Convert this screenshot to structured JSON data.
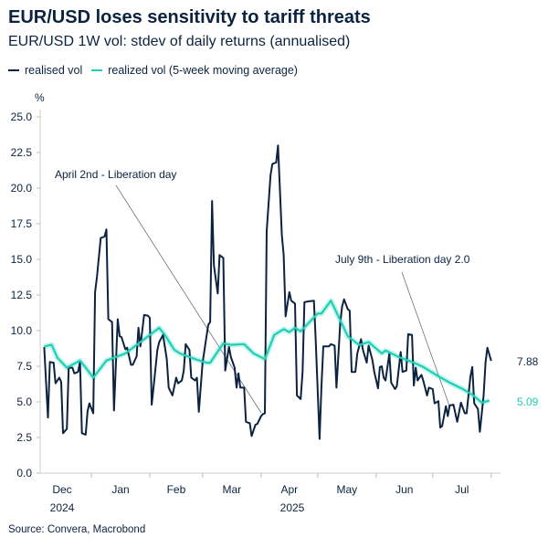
{
  "title": "EUR/USD loses sensitivity to tariff threats",
  "subtitle": "EUR/USD 1W vol: stdev of daily returns (annualised)",
  "source": "Source: Convera, Macrobond",
  "colors": {
    "realised": "#0b2340",
    "ma": "#1fcfb6"
  },
  "chart_data": {
    "type": "line",
    "ylabel": "%",
    "ylim": [
      0,
      25
    ],
    "yticks": [
      "0.0",
      "2.5",
      "5.0",
      "7.5",
      "10.0",
      "12.5",
      "15.0",
      "17.5",
      "20.0",
      "22.5",
      "25.0"
    ],
    "xticks": [
      "Dec",
      "Jan",
      "Feb",
      "Mar",
      "Apr",
      "May",
      "Jun",
      "Jul"
    ],
    "year_labels": [
      "2024",
      "2025"
    ],
    "grid": false,
    "legend": "top-left",
    "annotations": [
      {
        "text": "April 2nd - Liberation day",
        "date": "2025-04-02"
      },
      {
        "text": "July 9th - Liberation day 2.0",
        "date": "2025-07-09"
      }
    ],
    "end_labels": [
      "7.88",
      "5.09"
    ],
    "series": [
      {
        "name": "realised vol",
        "points": [
          [
            "2024-12-07",
            8.85
          ],
          [
            "2024-12-09",
            3.9
          ],
          [
            "2024-12-10",
            7.8
          ],
          [
            "2024-12-12",
            7.75
          ],
          [
            "2024-12-13",
            6.3
          ],
          [
            "2024-12-15",
            6.7
          ],
          [
            "2024-12-16",
            6.4
          ],
          [
            "2024-12-17",
            2.8
          ],
          [
            "2024-12-19",
            3.1
          ],
          [
            "2024-12-20",
            7.4
          ],
          [
            "2024-12-22",
            7.4
          ],
          [
            "2024-12-23",
            7.0
          ],
          [
            "2024-12-25",
            7.1
          ],
          [
            "2024-12-26",
            7.8
          ],
          [
            "2024-12-27",
            2.8
          ],
          [
            "2024-12-29",
            2.7
          ],
          [
            "2024-12-30",
            4.35
          ],
          [
            "2024-12-31",
            4.9
          ],
          [
            "2025-01-02",
            4.2
          ],
          [
            "2025-01-03",
            12.7
          ],
          [
            "2025-01-04",
            13.8
          ],
          [
            "2025-01-06",
            16.5
          ],
          [
            "2025-01-08",
            16.6
          ],
          [
            "2025-01-09",
            17.1
          ],
          [
            "2025-01-10",
            10.8
          ],
          [
            "2025-01-12",
            10.6
          ],
          [
            "2025-01-13",
            4.4
          ],
          [
            "2025-01-15",
            10.8
          ],
          [
            "2025-01-16",
            9.6
          ],
          [
            "2025-01-17",
            9.55
          ],
          [
            "2025-01-19",
            8.7
          ],
          [
            "2025-01-20",
            8.8
          ],
          [
            "2025-01-22",
            7.6
          ],
          [
            "2025-01-23",
            7.6
          ],
          [
            "2025-01-25",
            8.2
          ],
          [
            "2025-01-26",
            10.2
          ],
          [
            "2025-01-27",
            8.9
          ],
          [
            "2025-01-29",
            11.1
          ],
          [
            "2025-01-31",
            11.05
          ],
          [
            "2025-02-01",
            10.9
          ],
          [
            "2025-02-02",
            4.8
          ],
          [
            "2025-02-03",
            6.0
          ],
          [
            "2025-02-05",
            8.65
          ],
          [
            "2025-02-06",
            9.2
          ],
          [
            "2025-02-08",
            9.7
          ],
          [
            "2025-02-10",
            8.0
          ],
          [
            "2025-02-11",
            6.0
          ],
          [
            "2025-02-13",
            5.45
          ],
          [
            "2025-02-15",
            6.7
          ],
          [
            "2025-02-16",
            6.3
          ],
          [
            "2025-02-18",
            6.5
          ],
          [
            "2025-02-19",
            7.2
          ],
          [
            "2025-02-20",
            9.05
          ],
          [
            "2025-02-22",
            8.65
          ],
          [
            "2025-02-23",
            6.7
          ],
          [
            "2025-02-25",
            6.5
          ],
          [
            "2025-02-26",
            6.7
          ],
          [
            "2025-02-27",
            4.3
          ],
          [
            "2025-03-01",
            7.75
          ],
          [
            "2025-03-03",
            9.55
          ],
          [
            "2025-03-04",
            10.4
          ],
          [
            "2025-03-05",
            10.6
          ],
          [
            "2025-03-06",
            19.1
          ],
          [
            "2025-03-07",
            14.6
          ],
          [
            "2025-03-09",
            12.6
          ],
          [
            "2025-03-10",
            15.3
          ],
          [
            "2025-03-12",
            15.1
          ],
          [
            "2025-03-13",
            7.2
          ],
          [
            "2025-03-15",
            8.85
          ],
          [
            "2025-03-16",
            8.15
          ],
          [
            "2025-03-18",
            7.4
          ],
          [
            "2025-03-19",
            6.0
          ],
          [
            "2025-03-20",
            7.0
          ],
          [
            "2025-03-21",
            6.0
          ],
          [
            "2025-03-23",
            6.0
          ],
          [
            "2025-03-24",
            3.6
          ],
          [
            "2025-03-26",
            3.5
          ],
          [
            "2025-03-27",
            2.6
          ],
          [
            "2025-03-29",
            3.4
          ],
          [
            "2025-03-30",
            3.45
          ],
          [
            "2025-04-01",
            4.0
          ],
          [
            "2025-04-02",
            4.15
          ],
          [
            "2025-04-03",
            4.2
          ],
          [
            "2025-04-04",
            17.0
          ],
          [
            "2025-04-06",
            20.9
          ],
          [
            "2025-04-07",
            21.7
          ],
          [
            "2025-04-09",
            21.8
          ],
          [
            "2025-04-10",
            23.0
          ],
          [
            "2025-04-12",
            16.7
          ],
          [
            "2025-04-13",
            15.3
          ],
          [
            "2025-04-14",
            11.0
          ],
          [
            "2025-04-16",
            12.7
          ],
          [
            "2025-04-17",
            12.1
          ],
          [
            "2025-04-19",
            11.9
          ],
          [
            "2025-04-20",
            5.45
          ],
          [
            "2025-04-22",
            5.2
          ],
          [
            "2025-04-23",
            7.1
          ],
          [
            "2025-04-24",
            12.0
          ],
          [
            "2025-04-26",
            12.05
          ],
          [
            "2025-04-29",
            12.1
          ],
          [
            "2025-04-30",
            9.3
          ],
          [
            "2025-05-02",
            2.4
          ],
          [
            "2025-05-03",
            6.0
          ],
          [
            "2025-05-04",
            8.9
          ],
          [
            "2025-05-07",
            8.9
          ],
          [
            "2025-05-08",
            9.05
          ],
          [
            "2025-05-10",
            8.95
          ],
          [
            "2025-05-11",
            6.0
          ],
          [
            "2025-05-13",
            10.6
          ],
          [
            "2025-05-14",
            11.7
          ],
          [
            "2025-05-15",
            12.2
          ],
          [
            "2025-05-17",
            11.5
          ],
          [
            "2025-05-18",
            11.4
          ],
          [
            "2025-05-19",
            7.1
          ],
          [
            "2025-05-21",
            7.1
          ],
          [
            "2025-05-22",
            8.4
          ],
          [
            "2025-05-24",
            9.4
          ],
          [
            "2025-05-25",
            8.65
          ],
          [
            "2025-05-27",
            7.75
          ],
          [
            "2025-05-28",
            8.95
          ],
          [
            "2025-05-30",
            7.95
          ],
          [
            "2025-05-31",
            7.1
          ],
          [
            "2025-06-02",
            5.95
          ],
          [
            "2025-06-03",
            7.45
          ],
          [
            "2025-06-04",
            7.5
          ],
          [
            "2025-06-05",
            6.7
          ],
          [
            "2025-06-06",
            6.5
          ],
          [
            "2025-06-08",
            8.4
          ],
          [
            "2025-06-09",
            6.35
          ],
          [
            "2025-06-11",
            5.9
          ],
          [
            "2025-06-12",
            6.1
          ],
          [
            "2025-06-14",
            8.5
          ],
          [
            "2025-06-15",
            7.1
          ],
          [
            "2025-06-17",
            7.2
          ],
          [
            "2025-06-18",
            9.75
          ],
          [
            "2025-06-20",
            9.7
          ],
          [
            "2025-06-21",
            6.15
          ],
          [
            "2025-06-22",
            7.4
          ],
          [
            "2025-06-23",
            6.5
          ],
          [
            "2025-06-25",
            6.9
          ],
          [
            "2025-06-26",
            6.5
          ],
          [
            "2025-06-28",
            5.45
          ],
          [
            "2025-06-29",
            6.0
          ],
          [
            "2025-07-01",
            5.9
          ],
          [
            "2025-07-02",
            4.9
          ],
          [
            "2025-07-04",
            5.05
          ],
          [
            "2025-07-05",
            3.2
          ],
          [
            "2025-07-06",
            3.3
          ],
          [
            "2025-07-08",
            4.7
          ],
          [
            "2025-07-09",
            4.0
          ],
          [
            "2025-07-10",
            4.75
          ],
          [
            "2025-07-12",
            4.8
          ],
          [
            "2025-07-14",
            3.6
          ],
          [
            "2025-07-16",
            4.95
          ],
          [
            "2025-07-18",
            4.2
          ],
          [
            "2025-07-19",
            4.2
          ],
          [
            "2025-07-21",
            6.8
          ],
          [
            "2025-07-22",
            7.45
          ],
          [
            "2025-07-23",
            4.9
          ],
          [
            "2025-07-25",
            4.5
          ],
          [
            "2025-07-26",
            2.9
          ],
          [
            "2025-07-28",
            5.45
          ],
          [
            "2025-07-29",
            7.75
          ],
          [
            "2025-07-30",
            8.8
          ],
          [
            "2025-08-01",
            7.88
          ]
        ]
      },
      {
        "name": "realized vol (5-week moving average)",
        "points": [
          [
            "2024-12-07",
            8.9
          ],
          [
            "2024-12-11",
            9.0
          ],
          [
            "2024-12-14",
            8.1
          ],
          [
            "2024-12-19",
            7.4
          ],
          [
            "2024-12-26",
            7.9
          ],
          [
            "2024-12-29",
            7.4
          ],
          [
            "2025-01-02",
            6.7
          ],
          [
            "2025-01-09",
            7.9
          ],
          [
            "2025-01-19",
            8.4
          ],
          [
            "2025-01-27",
            9.2
          ],
          [
            "2025-02-01",
            9.7
          ],
          [
            "2025-02-06",
            10.2
          ],
          [
            "2025-02-09",
            9.7
          ],
          [
            "2025-02-14",
            8.65
          ],
          [
            "2025-02-17",
            8.4
          ],
          [
            "2025-02-25",
            8.0
          ],
          [
            "2025-03-03",
            7.75
          ],
          [
            "2025-03-05",
            7.75
          ],
          [
            "2025-03-12",
            9.1
          ],
          [
            "2025-03-16",
            9.0
          ],
          [
            "2025-03-23",
            9.05
          ],
          [
            "2025-03-28",
            8.4
          ],
          [
            "2025-04-03",
            8.0
          ],
          [
            "2025-04-08",
            9.7
          ],
          [
            "2025-04-13",
            10.1
          ],
          [
            "2025-04-16",
            9.9
          ],
          [
            "2025-04-19",
            10.2
          ],
          [
            "2025-04-22",
            9.95
          ],
          [
            "2025-05-01",
            11.2
          ],
          [
            "2025-05-03",
            11.2
          ],
          [
            "2025-05-08",
            12.1
          ],
          [
            "2025-05-12",
            11.0
          ],
          [
            "2025-05-17",
            9.6
          ],
          [
            "2025-05-23",
            9.0
          ],
          [
            "2025-05-28",
            9.2
          ],
          [
            "2025-06-04",
            8.4
          ],
          [
            "2025-06-06",
            8.6
          ],
          [
            "2025-06-13",
            8.15
          ],
          [
            "2025-06-20",
            7.8
          ],
          [
            "2025-06-26",
            7.45
          ],
          [
            "2025-07-04",
            6.8
          ],
          [
            "2025-07-10",
            6.35
          ],
          [
            "2025-07-17",
            5.9
          ],
          [
            "2025-07-22",
            5.5
          ],
          [
            "2025-07-27",
            4.95
          ],
          [
            "2025-07-31",
            5.09
          ]
        ]
      }
    ]
  }
}
